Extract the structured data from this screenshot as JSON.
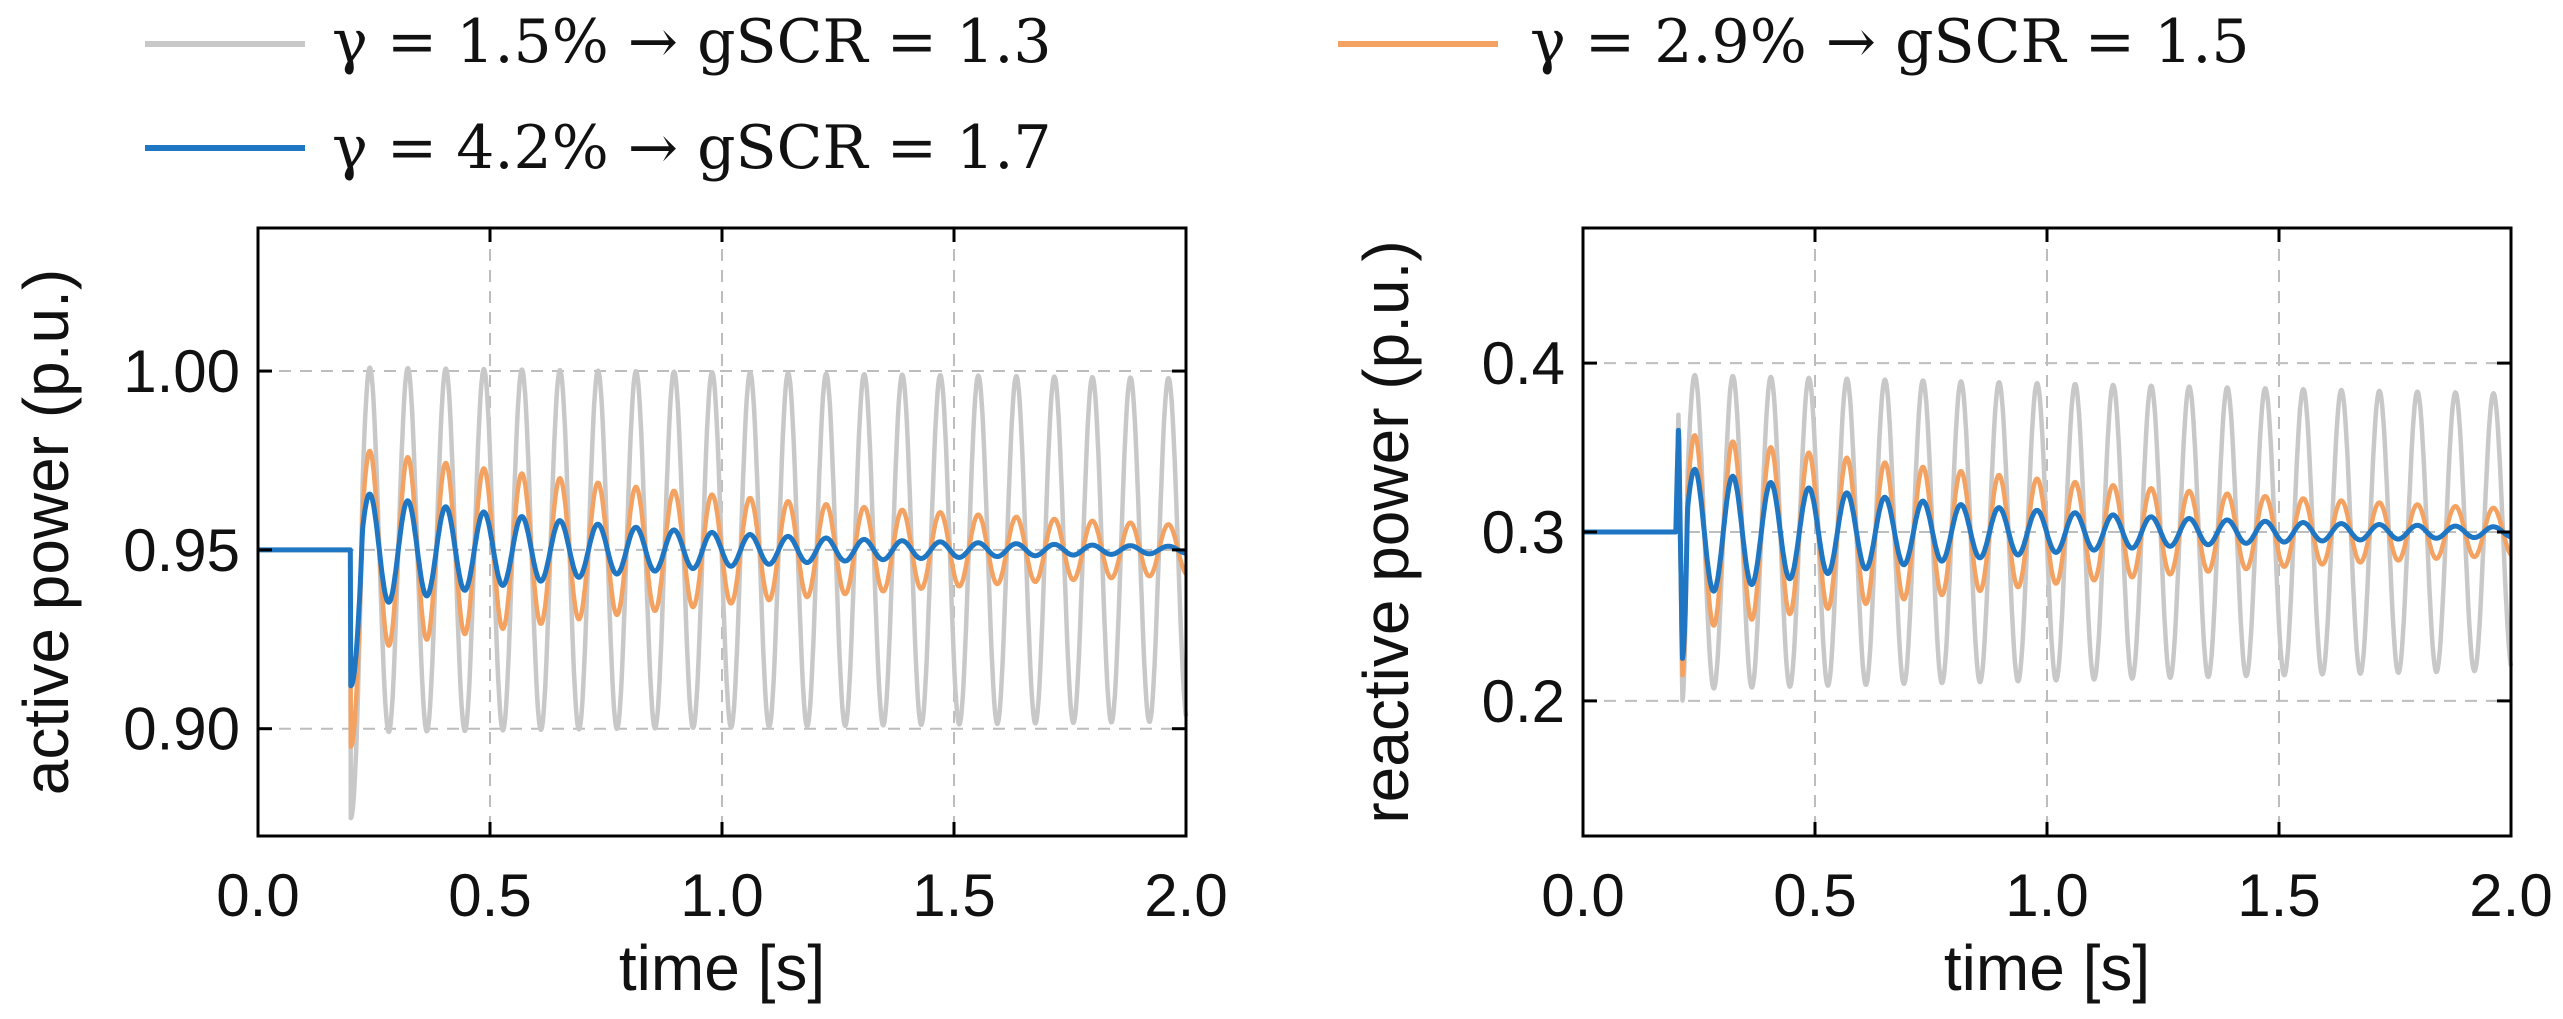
{
  "legend": [
    {
      "text": "γ = 1.5% → gSCR = 1.3",
      "color": "#c8c8c8"
    },
    {
      "text": "γ = 2.9% → gSCR = 1.5",
      "color": "#f4a261"
    },
    {
      "text": "γ = 4.2% → gSCR = 1.7",
      "color": "#1f77c4"
    }
  ],
  "chart_data": [
    {
      "type": "line",
      "xlabel": "time [s]",
      "ylabel": "active power (p.u.)",
      "xlim": [
        0.0,
        2.0
      ],
      "ylim": [
        0.87,
        1.04
      ],
      "xticks": [
        0.0,
        0.5,
        1.0,
        1.5,
        2.0
      ],
      "xtick_labels": [
        "0.0",
        "0.5",
        "1.0",
        "1.5",
        "2.0"
      ],
      "yticks": [
        0.9,
        0.95,
        1.0
      ],
      "ytick_labels": [
        "0.90",
        "0.95",
        "1.00"
      ],
      "grid": true,
      "event_time": 0.2,
      "series": [
        {
          "name": "γ = 1.5% → gSCR = 1.3",
          "baseline": 0.95,
          "dip": 0.875,
          "amplitude": 0.051,
          "final_amplitude": 0.048,
          "frequency_hz": 12.2
        },
        {
          "name": "γ = 2.9% → gSCR = 1.5",
          "baseline": 0.95,
          "dip": 0.895,
          "amplitude": 0.028,
          "final_amplitude": 0.007,
          "frequency_hz": 12.2
        },
        {
          "name": "γ = 4.2% → gSCR = 1.7",
          "baseline": 0.95,
          "dip": 0.912,
          "amplitude": 0.016,
          "final_amplitude": 0.001,
          "frequency_hz": 12.2
        }
      ]
    },
    {
      "type": "line",
      "xlabel": "time [s]",
      "ylabel": "reactive power (p.u.)",
      "xlim": [
        0.0,
        2.0
      ],
      "ylim": [
        0.12,
        0.48
      ],
      "xticks": [
        0.0,
        0.5,
        1.0,
        1.5,
        2.0
      ],
      "xtick_labels": [
        "0.0",
        "0.5",
        "1.0",
        "1.5",
        "2.0"
      ],
      "yticks": [
        0.2,
        0.3,
        0.4
      ],
      "ytick_labels": [
        "0.2",
        "0.3",
        "0.4"
      ],
      "grid": true,
      "event_time": 0.2,
      "series": [
        {
          "name": "γ = 1.5% → gSCR = 1.3",
          "baseline": 0.3,
          "spike": 0.375,
          "dip": 0.2,
          "amplitude": 0.093,
          "final_amplitude": 0.082,
          "frequency_hz": 12.2
        },
        {
          "name": "γ = 2.9% → gSCR = 1.5",
          "baseline": 0.3,
          "spike": 0.36,
          "dip": 0.215,
          "amplitude": 0.058,
          "final_amplitude": 0.014,
          "frequency_hz": 12.2
        },
        {
          "name": "γ = 4.2% → gSCR = 1.7",
          "baseline": 0.3,
          "spike": 0.365,
          "dip": 0.225,
          "amplitude": 0.038,
          "final_amplitude": 0.003,
          "frequency_hz": 12.2
        }
      ]
    }
  ]
}
